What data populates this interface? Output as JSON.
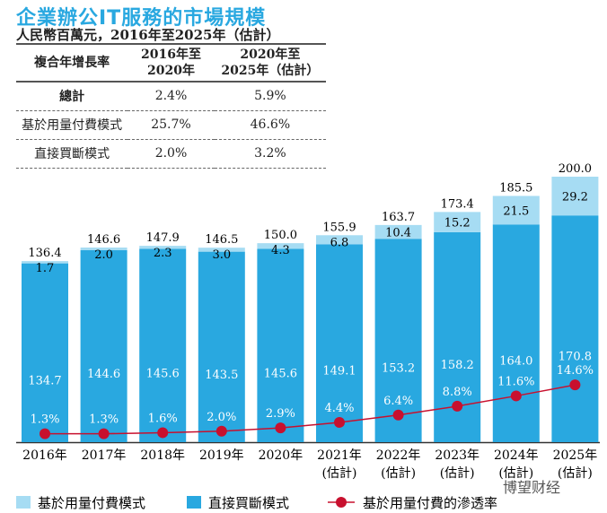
{
  "title": "企業辦公IT服務的市場規模",
  "subtitle": "人民幣百萬元，2016年至2025年（估計）",
  "table": {
    "headers": [
      "複合年增長率",
      "2016年至\n2020年",
      "2020年至\n2025年（估計）"
    ],
    "header_lines": [
      [
        "複合年增長率"
      ],
      [
        "2016年至",
        "2020年"
      ],
      [
        "2020年至",
        "2025年（估計）"
      ]
    ],
    "rows": [
      [
        "總計",
        "2.4%",
        "5.9%"
      ],
      [
        "基於用量付費模式",
        "25.7%",
        "46.6%"
      ],
      [
        "直接買斷模式",
        "2.0%",
        "3.2%"
      ]
    ]
  },
  "chart_data": {
    "type": "bar",
    "stacked": true,
    "categories": [
      "2016年",
      "2017年",
      "2018年",
      "2019年",
      "2020年",
      "2021年\n(估計)",
      "2022年\n(估計)",
      "2023年\n(估計)",
      "2024年\n(估計)",
      "2025年\n(估計)"
    ],
    "category_lines": [
      [
        "2016年"
      ],
      [
        "2017年"
      ],
      [
        "2018年"
      ],
      [
        "2019年"
      ],
      [
        "2020年"
      ],
      [
        "2021年",
        "(估計)"
      ],
      [
        "2022年",
        "(估計)"
      ],
      [
        "2023年",
        "(估計)"
      ],
      [
        "2024年",
        "(估計)"
      ],
      [
        "2025年",
        "(估計)"
      ]
    ],
    "totals": [
      "136.4",
      "146.6",
      "147.9",
      "146.5",
      "150.0",
      "155.9",
      "163.7",
      "173.4",
      "185.5",
      "200.0"
    ],
    "series": [
      {
        "name": "直接買斷模式",
        "color": "#29a8e0",
        "values": [
          134.7,
          144.6,
          145.6,
          143.5,
          145.6,
          149.1,
          153.2,
          158.2,
          164.0,
          170.8
        ]
      },
      {
        "name": "基於用量付費模式",
        "color": "#a6dcf3",
        "values": [
          1.7,
          2.0,
          2.3,
          3.0,
          4.3,
          6.8,
          10.4,
          15.2,
          21.5,
          29.2
        ]
      }
    ],
    "line": {
      "name": "基於用量付費的滲透率",
      "color": "#c8102e",
      "values": [
        1.3,
        1.3,
        1.6,
        2.0,
        2.9,
        4.4,
        6.4,
        8.8,
        11.6,
        14.6
      ],
      "labels": [
        "1.3%",
        "1.3%",
        "1.6%",
        "2.0%",
        "2.9%",
        "4.4%",
        "6.4%",
        "8.8%",
        "11.6%",
        "14.6%"
      ]
    },
    "legend": [
      "基於用量付費模式",
      "直接買斷模式",
      "基於用量付費的滲透率"
    ],
    "legend_placement": "bottom"
  },
  "watermark": "博望财经"
}
